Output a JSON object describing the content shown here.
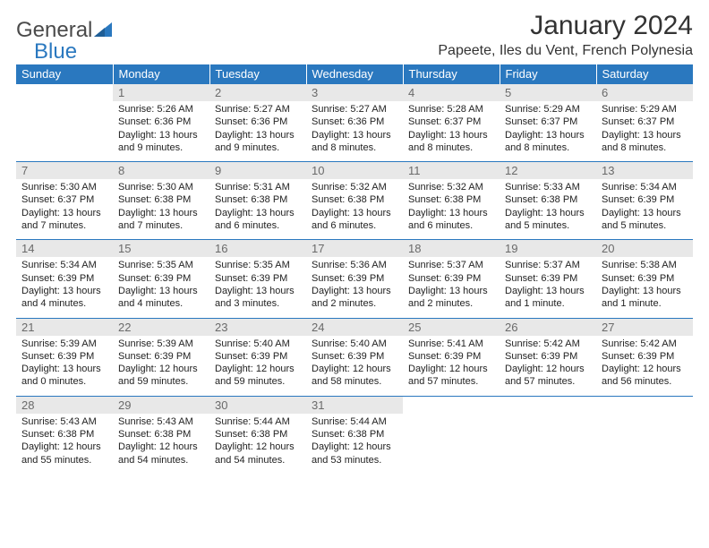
{
  "brand": {
    "word1": "General",
    "word2": "Blue",
    "word1_color": "#4a4a4a",
    "word2_color": "#2a78bf",
    "icon_color": "#2a78bf"
  },
  "title": "January 2024",
  "subtitle": "Papeete, Iles du Vent, French Polynesia",
  "colors": {
    "header_bg": "#2a78bf",
    "header_text": "#ffffff",
    "daynum_bg": "#e8e8e8",
    "daynum_text": "#6a6a6a",
    "week_border": "#2a78bf",
    "body_text": "#222222"
  },
  "day_headers": [
    "Sunday",
    "Monday",
    "Tuesday",
    "Wednesday",
    "Thursday",
    "Friday",
    "Saturday"
  ],
  "font": {
    "title_size": 30,
    "subtitle_size": 16,
    "header_size": 13,
    "daynum_size": 13,
    "body_size": 11
  },
  "weeks": [
    [
      {
        "n": "",
        "sunrise": "",
        "sunset": "",
        "daylight": ""
      },
      {
        "n": "1",
        "sunrise": "Sunrise: 5:26 AM",
        "sunset": "Sunset: 6:36 PM",
        "daylight": "Daylight: 13 hours and 9 minutes."
      },
      {
        "n": "2",
        "sunrise": "Sunrise: 5:27 AM",
        "sunset": "Sunset: 6:36 PM",
        "daylight": "Daylight: 13 hours and 9 minutes."
      },
      {
        "n": "3",
        "sunrise": "Sunrise: 5:27 AM",
        "sunset": "Sunset: 6:36 PM",
        "daylight": "Daylight: 13 hours and 8 minutes."
      },
      {
        "n": "4",
        "sunrise": "Sunrise: 5:28 AM",
        "sunset": "Sunset: 6:37 PM",
        "daylight": "Daylight: 13 hours and 8 minutes."
      },
      {
        "n": "5",
        "sunrise": "Sunrise: 5:29 AM",
        "sunset": "Sunset: 6:37 PM",
        "daylight": "Daylight: 13 hours and 8 minutes."
      },
      {
        "n": "6",
        "sunrise": "Sunrise: 5:29 AM",
        "sunset": "Sunset: 6:37 PM",
        "daylight": "Daylight: 13 hours and 8 minutes."
      }
    ],
    [
      {
        "n": "7",
        "sunrise": "Sunrise: 5:30 AM",
        "sunset": "Sunset: 6:37 PM",
        "daylight": "Daylight: 13 hours and 7 minutes."
      },
      {
        "n": "8",
        "sunrise": "Sunrise: 5:30 AM",
        "sunset": "Sunset: 6:38 PM",
        "daylight": "Daylight: 13 hours and 7 minutes."
      },
      {
        "n": "9",
        "sunrise": "Sunrise: 5:31 AM",
        "sunset": "Sunset: 6:38 PM",
        "daylight": "Daylight: 13 hours and 6 minutes."
      },
      {
        "n": "10",
        "sunrise": "Sunrise: 5:32 AM",
        "sunset": "Sunset: 6:38 PM",
        "daylight": "Daylight: 13 hours and 6 minutes."
      },
      {
        "n": "11",
        "sunrise": "Sunrise: 5:32 AM",
        "sunset": "Sunset: 6:38 PM",
        "daylight": "Daylight: 13 hours and 6 minutes."
      },
      {
        "n": "12",
        "sunrise": "Sunrise: 5:33 AM",
        "sunset": "Sunset: 6:38 PM",
        "daylight": "Daylight: 13 hours and 5 minutes."
      },
      {
        "n": "13",
        "sunrise": "Sunrise: 5:34 AM",
        "sunset": "Sunset: 6:39 PM",
        "daylight": "Daylight: 13 hours and 5 minutes."
      }
    ],
    [
      {
        "n": "14",
        "sunrise": "Sunrise: 5:34 AM",
        "sunset": "Sunset: 6:39 PM",
        "daylight": "Daylight: 13 hours and 4 minutes."
      },
      {
        "n": "15",
        "sunrise": "Sunrise: 5:35 AM",
        "sunset": "Sunset: 6:39 PM",
        "daylight": "Daylight: 13 hours and 4 minutes."
      },
      {
        "n": "16",
        "sunrise": "Sunrise: 5:35 AM",
        "sunset": "Sunset: 6:39 PM",
        "daylight": "Daylight: 13 hours and 3 minutes."
      },
      {
        "n": "17",
        "sunrise": "Sunrise: 5:36 AM",
        "sunset": "Sunset: 6:39 PM",
        "daylight": "Daylight: 13 hours and 2 minutes."
      },
      {
        "n": "18",
        "sunrise": "Sunrise: 5:37 AM",
        "sunset": "Sunset: 6:39 PM",
        "daylight": "Daylight: 13 hours and 2 minutes."
      },
      {
        "n": "19",
        "sunrise": "Sunrise: 5:37 AM",
        "sunset": "Sunset: 6:39 PM",
        "daylight": "Daylight: 13 hours and 1 minute."
      },
      {
        "n": "20",
        "sunrise": "Sunrise: 5:38 AM",
        "sunset": "Sunset: 6:39 PM",
        "daylight": "Daylight: 13 hours and 1 minute."
      }
    ],
    [
      {
        "n": "21",
        "sunrise": "Sunrise: 5:39 AM",
        "sunset": "Sunset: 6:39 PM",
        "daylight": "Daylight: 13 hours and 0 minutes."
      },
      {
        "n": "22",
        "sunrise": "Sunrise: 5:39 AM",
        "sunset": "Sunset: 6:39 PM",
        "daylight": "Daylight: 12 hours and 59 minutes."
      },
      {
        "n": "23",
        "sunrise": "Sunrise: 5:40 AM",
        "sunset": "Sunset: 6:39 PM",
        "daylight": "Daylight: 12 hours and 59 minutes."
      },
      {
        "n": "24",
        "sunrise": "Sunrise: 5:40 AM",
        "sunset": "Sunset: 6:39 PM",
        "daylight": "Daylight: 12 hours and 58 minutes."
      },
      {
        "n": "25",
        "sunrise": "Sunrise: 5:41 AM",
        "sunset": "Sunset: 6:39 PM",
        "daylight": "Daylight: 12 hours and 57 minutes."
      },
      {
        "n": "26",
        "sunrise": "Sunrise: 5:42 AM",
        "sunset": "Sunset: 6:39 PM",
        "daylight": "Daylight: 12 hours and 57 minutes."
      },
      {
        "n": "27",
        "sunrise": "Sunrise: 5:42 AM",
        "sunset": "Sunset: 6:39 PM",
        "daylight": "Daylight: 12 hours and 56 minutes."
      }
    ],
    [
      {
        "n": "28",
        "sunrise": "Sunrise: 5:43 AM",
        "sunset": "Sunset: 6:38 PM",
        "daylight": "Daylight: 12 hours and 55 minutes."
      },
      {
        "n": "29",
        "sunrise": "Sunrise: 5:43 AM",
        "sunset": "Sunset: 6:38 PM",
        "daylight": "Daylight: 12 hours and 54 minutes."
      },
      {
        "n": "30",
        "sunrise": "Sunrise: 5:44 AM",
        "sunset": "Sunset: 6:38 PM",
        "daylight": "Daylight: 12 hours and 54 minutes."
      },
      {
        "n": "31",
        "sunrise": "Sunrise: 5:44 AM",
        "sunset": "Sunset: 6:38 PM",
        "daylight": "Daylight: 12 hours and 53 minutes."
      },
      {
        "n": "",
        "sunrise": "",
        "sunset": "",
        "daylight": ""
      },
      {
        "n": "",
        "sunrise": "",
        "sunset": "",
        "daylight": ""
      },
      {
        "n": "",
        "sunrise": "",
        "sunset": "",
        "daylight": ""
      }
    ]
  ]
}
